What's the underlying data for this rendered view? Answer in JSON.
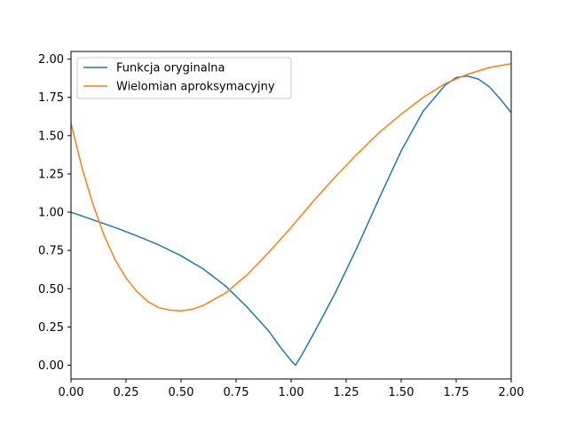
{
  "chart_data": {
    "type": "line",
    "title": "",
    "xlabel": "",
    "ylabel": "",
    "xlim": [
      0,
      2
    ],
    "ylim": [
      -0.09,
      2.05
    ],
    "grid": false,
    "legend_position": "top-left",
    "x_ticks": [
      0,
      0.25,
      0.5,
      0.75,
      1.0,
      1.25,
      1.5,
      1.75,
      2.0
    ],
    "x_tick_labels": [
      "0.00",
      "0.25",
      "0.50",
      "0.75",
      "1.00",
      "1.25",
      "1.50",
      "1.75",
      "2.00"
    ],
    "y_ticks": [
      0,
      0.25,
      0.5,
      0.75,
      1.0,
      1.25,
      1.5,
      1.75,
      2.0
    ],
    "y_tick_labels": [
      "0.00",
      "0.25",
      "0.50",
      "0.75",
      "1.00",
      "1.25",
      "1.50",
      "1.75",
      "2.00"
    ],
    "series": [
      {
        "name": "Funkcja oryginalna",
        "color": "#1f77b4",
        "x": [
          0.0,
          0.1,
          0.2,
          0.3,
          0.4,
          0.5,
          0.6,
          0.7,
          0.8,
          0.9,
          0.95,
          1.0,
          1.02,
          1.05,
          1.1,
          1.2,
          1.3,
          1.4,
          1.5,
          1.6,
          1.7,
          1.75,
          1.8,
          1.85,
          1.9,
          1.95,
          2.0
        ],
        "y": [
          1.0,
          0.95,
          0.9,
          0.845,
          0.785,
          0.715,
          0.63,
          0.52,
          0.38,
          0.22,
          0.12,
          0.03,
          0.0,
          0.07,
          0.2,
          0.47,
          0.77,
          1.09,
          1.4,
          1.66,
          1.83,
          1.88,
          1.89,
          1.87,
          1.82,
          1.74,
          1.65
        ]
      },
      {
        "name": "Wielomian aproksymacyjny",
        "color": "#ff7f0e",
        "x": [
          0.0,
          0.05,
          0.1,
          0.15,
          0.2,
          0.25,
          0.3,
          0.35,
          0.4,
          0.45,
          0.5,
          0.55,
          0.6,
          0.7,
          0.8,
          0.9,
          1.0,
          1.1,
          1.2,
          1.3,
          1.4,
          1.5,
          1.6,
          1.7,
          1.8,
          1.9,
          2.0
        ],
        "y": [
          1.58,
          1.29,
          1.05,
          0.85,
          0.69,
          0.57,
          0.48,
          0.415,
          0.375,
          0.36,
          0.355,
          0.365,
          0.39,
          0.47,
          0.59,
          0.74,
          0.9,
          1.07,
          1.23,
          1.38,
          1.52,
          1.64,
          1.75,
          1.84,
          1.9,
          1.945,
          1.97
        ]
      }
    ]
  }
}
